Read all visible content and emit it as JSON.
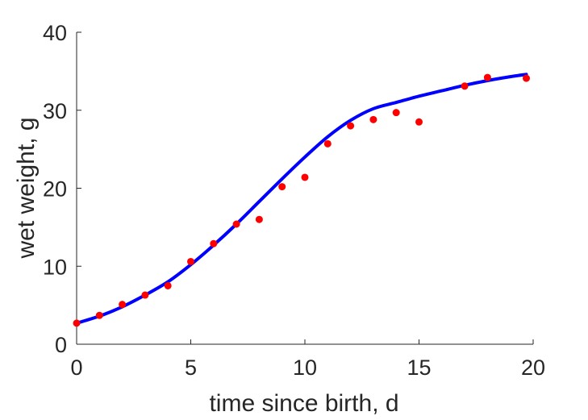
{
  "chart_data": {
    "type": "scatter",
    "title": "",
    "xlabel": "time since birth, d",
    "ylabel": "wet weight, g",
    "xlim": [
      0,
      20
    ],
    "ylim": [
      0,
      40
    ],
    "xticks": [
      "0",
      "5",
      "10",
      "15",
      "20"
    ],
    "yticks": [
      "0",
      "10",
      "20",
      "30",
      "40"
    ],
    "grid": false,
    "legend": "none",
    "series": [
      {
        "kind": "markers",
        "color": "#ff0000",
        "x": [
          0,
          1,
          2,
          3,
          4,
          5,
          6,
          7,
          8,
          9,
          10,
          11,
          12,
          13,
          14,
          15,
          17,
          18,
          19.7
        ],
        "y": [
          2.7,
          3.7,
          5.1,
          6.3,
          7.5,
          10.6,
          12.9,
          15.4,
          16.0,
          20.2,
          21.4,
          25.7,
          28.0,
          28.8,
          29.7,
          28.5,
          33.1,
          34.2,
          34.1
        ]
      },
      {
        "kind": "line",
        "color": "#0000ff",
        "x": [
          0,
          1,
          2,
          3,
          4,
          5,
          6,
          7,
          8,
          9,
          10,
          11,
          12,
          13,
          14,
          15,
          16,
          17,
          18,
          19,
          19.7
        ],
        "y": [
          2.7,
          3.6,
          4.8,
          6.3,
          8.0,
          10.2,
          12.7,
          15.4,
          18.3,
          21.2,
          24.0,
          26.6,
          28.7,
          30.2,
          31.0,
          31.8,
          32.5,
          33.2,
          33.8,
          34.3,
          34.6
        ]
      }
    ]
  }
}
